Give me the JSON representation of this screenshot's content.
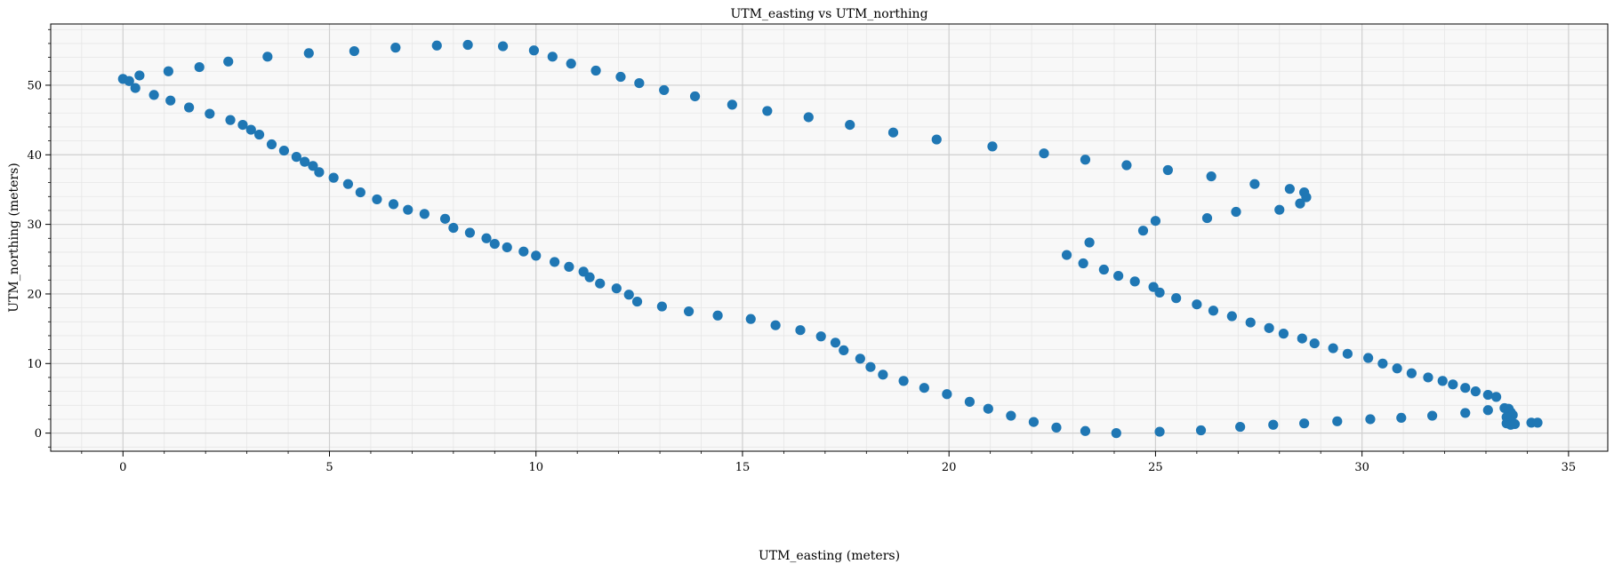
{
  "chart_data": {
    "type": "scatter",
    "title": "UTM_easting vs UTM_northing",
    "xlabel": "UTM_easting (meters)",
    "ylabel": "UTM_northing (meters)",
    "xlim": [
      -1.75,
      35.95
    ],
    "ylim": [
      -2.6,
      58.8
    ],
    "xticks": [
      0,
      5,
      10,
      15,
      20,
      25,
      30,
      35
    ],
    "yticks": [
      0,
      10,
      20,
      30,
      40,
      50
    ],
    "grid": true,
    "minor_grid": true,
    "legend": "none",
    "color": "#1f77b4",
    "series": [
      {
        "points": [
          [
            0.0,
            50.9
          ],
          [
            0.15,
            50.6
          ],
          [
            0.3,
            49.6
          ],
          [
            0.4,
            51.4
          ],
          [
            0.75,
            48.6
          ],
          [
            1.1,
            52.0
          ],
          [
            1.15,
            47.8
          ],
          [
            1.6,
            46.8
          ],
          [
            1.85,
            52.6
          ],
          [
            2.1,
            45.9
          ],
          [
            2.55,
            53.4
          ],
          [
            2.6,
            45.0
          ],
          [
            2.9,
            44.3
          ],
          [
            3.1,
            43.6
          ],
          [
            3.3,
            42.9
          ],
          [
            3.5,
            54.1
          ],
          [
            3.6,
            41.5
          ],
          [
            3.9,
            40.6
          ],
          [
            4.2,
            39.7
          ],
          [
            4.4,
            39.0
          ],
          [
            4.5,
            54.6
          ],
          [
            4.6,
            38.4
          ],
          [
            4.75,
            37.5
          ],
          [
            5.1,
            36.7
          ],
          [
            5.45,
            35.8
          ],
          [
            5.6,
            54.9
          ],
          [
            5.75,
            34.6
          ],
          [
            6.15,
            33.6
          ],
          [
            6.55,
            32.9
          ],
          [
            6.6,
            55.4
          ],
          [
            6.9,
            32.1
          ],
          [
            7.3,
            31.5
          ],
          [
            7.6,
            55.7
          ],
          [
            7.8,
            30.8
          ],
          [
            8.0,
            29.5
          ],
          [
            8.35,
            55.8
          ],
          [
            8.4,
            28.8
          ],
          [
            8.8,
            28.0
          ],
          [
            9.0,
            27.2
          ],
          [
            9.2,
            55.6
          ],
          [
            9.3,
            26.7
          ],
          [
            9.7,
            26.1
          ],
          [
            9.95,
            55.0
          ],
          [
            10.0,
            25.5
          ],
          [
            10.4,
            54.1
          ],
          [
            10.45,
            24.6
          ],
          [
            10.8,
            23.9
          ],
          [
            10.85,
            53.1
          ],
          [
            11.15,
            23.2
          ],
          [
            11.3,
            22.4
          ],
          [
            11.45,
            52.1
          ],
          [
            11.55,
            21.5
          ],
          [
            11.95,
            20.8
          ],
          [
            12.05,
            51.2
          ],
          [
            12.25,
            19.9
          ],
          [
            12.45,
            18.9
          ],
          [
            12.5,
            50.3
          ],
          [
            13.1,
            49.3
          ],
          [
            13.05,
            18.2
          ],
          [
            13.7,
            17.5
          ],
          [
            13.85,
            48.4
          ],
          [
            14.4,
            16.9
          ],
          [
            14.75,
            47.2
          ],
          [
            15.2,
            16.4
          ],
          [
            15.6,
            46.3
          ],
          [
            15.8,
            15.5
          ],
          [
            16.4,
            14.8
          ],
          [
            16.6,
            45.4
          ],
          [
            16.9,
            13.9
          ],
          [
            17.25,
            13.0
          ],
          [
            17.45,
            11.9
          ],
          [
            17.6,
            44.3
          ],
          [
            17.85,
            10.7
          ],
          [
            18.1,
            9.5
          ],
          [
            18.4,
            8.4
          ],
          [
            18.65,
            43.2
          ],
          [
            18.9,
            7.5
          ],
          [
            19.4,
            6.5
          ],
          [
            19.7,
            42.2
          ],
          [
            19.95,
            5.6
          ],
          [
            20.5,
            4.5
          ],
          [
            20.95,
            3.5
          ],
          [
            21.05,
            41.2
          ],
          [
            21.5,
            2.5
          ],
          [
            22.05,
            1.6
          ],
          [
            22.3,
            40.2
          ],
          [
            22.6,
            0.8
          ],
          [
            22.85,
            25.6
          ],
          [
            23.25,
            24.4
          ],
          [
            23.3,
            0.3
          ],
          [
            23.3,
            39.3
          ],
          [
            23.4,
            27.4
          ],
          [
            23.75,
            23.5
          ],
          [
            24.05,
            0.0
          ],
          [
            24.1,
            22.6
          ],
          [
            24.3,
            38.5
          ],
          [
            24.5,
            21.8
          ],
          [
            24.7,
            29.1
          ],
          [
            24.95,
            21.0
          ],
          [
            25.0,
            30.5
          ],
          [
            25.1,
            0.2
          ],
          [
            25.1,
            20.2
          ],
          [
            25.3,
            37.8
          ],
          [
            25.5,
            19.4
          ],
          [
            26.0,
            18.5
          ],
          [
            26.1,
            0.4
          ],
          [
            26.25,
            30.9
          ],
          [
            26.35,
            36.9
          ],
          [
            26.4,
            17.6
          ],
          [
            26.85,
            16.8
          ],
          [
            26.95,
            31.8
          ],
          [
            27.05,
            0.9
          ],
          [
            27.3,
            15.9
          ],
          [
            27.4,
            35.8
          ],
          [
            27.75,
            15.1
          ],
          [
            27.85,
            1.2
          ],
          [
            28.0,
            32.1
          ],
          [
            28.1,
            14.3
          ],
          [
            28.25,
            35.1
          ],
          [
            28.5,
            33.0
          ],
          [
            28.55,
            13.6
          ],
          [
            28.6,
            1.4
          ],
          [
            28.6,
            34.6
          ],
          [
            28.65,
            33.9
          ],
          [
            28.85,
            12.9
          ],
          [
            29.3,
            12.2
          ],
          [
            29.4,
            1.7
          ],
          [
            29.65,
            11.4
          ],
          [
            30.15,
            10.8
          ],
          [
            30.2,
            2.0
          ],
          [
            30.5,
            10.0
          ],
          [
            30.95,
            2.2
          ],
          [
            30.85,
            9.3
          ],
          [
            31.2,
            8.6
          ],
          [
            31.6,
            8.0
          ],
          [
            31.7,
            2.5
          ],
          [
            31.95,
            7.5
          ],
          [
            32.2,
            7.0
          ],
          [
            32.5,
            2.9
          ],
          [
            32.5,
            6.5
          ],
          [
            32.75,
            6.0
          ],
          [
            33.05,
            3.3
          ],
          [
            33.05,
            5.5
          ],
          [
            33.25,
            5.2
          ],
          [
            33.45,
            3.6
          ],
          [
            33.55,
            3.5
          ],
          [
            33.6,
            3.0
          ],
          [
            33.65,
            2.6
          ],
          [
            33.5,
            2.3
          ],
          [
            33.55,
            1.8
          ],
          [
            33.5,
            1.4
          ],
          [
            33.6,
            1.2
          ],
          [
            33.7,
            1.3
          ],
          [
            34.1,
            1.5
          ],
          [
            34.25,
            1.5
          ]
        ]
      }
    ]
  }
}
